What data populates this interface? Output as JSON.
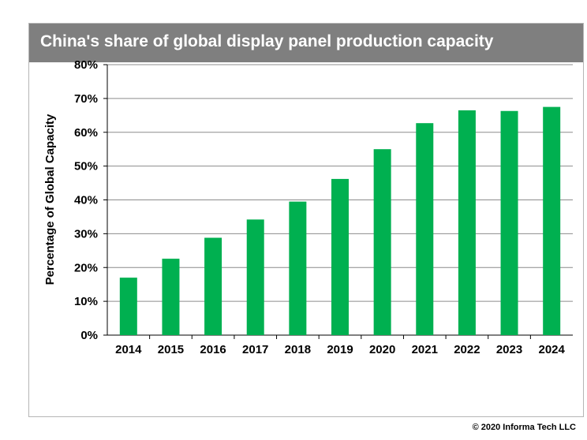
{
  "chart_data": {
    "type": "bar",
    "title": "China's share of global display panel production capacity",
    "ylabel": "Percentage of Global Capacity",
    "xlabel": "",
    "categories": [
      "2014",
      "2015",
      "2016",
      "2017",
      "2018",
      "2019",
      "2020",
      "2021",
      "2022",
      "2023",
      "2024"
    ],
    "values": [
      17,
      22.6,
      28.8,
      34.2,
      39.5,
      46.2,
      55,
      62.7,
      66.5,
      66.3,
      67.5
    ],
    "ylim": [
      0,
      80
    ],
    "yticks": [
      0,
      10,
      20,
      30,
      40,
      50,
      60,
      70,
      80
    ],
    "ytick_labels": [
      "0%",
      "10%",
      "20%",
      "30%",
      "40%",
      "50%",
      "60%",
      "70%",
      "80%"
    ],
    "grid": true,
    "bar_color": "#00b050",
    "legend": "none"
  },
  "colors": {
    "title_bar": "#7f7f7f",
    "gridline": "#8c8c8c"
  },
  "copyright": "© 2020 Informa Tech LLC"
}
